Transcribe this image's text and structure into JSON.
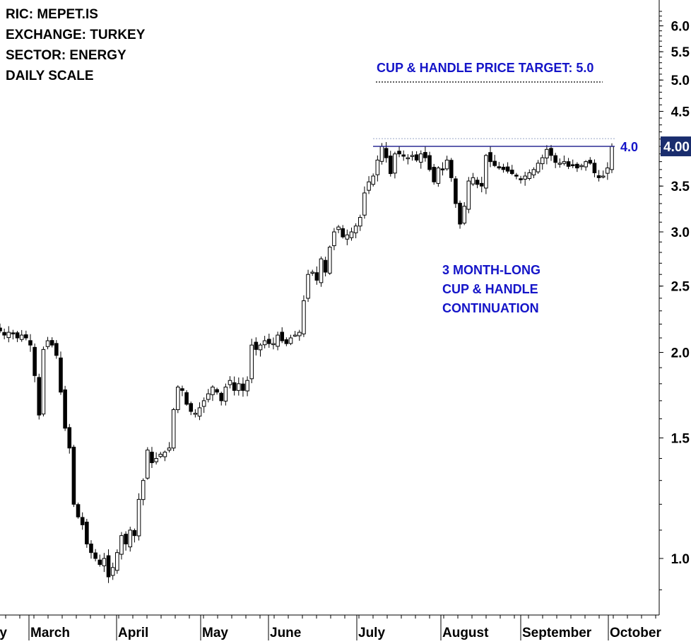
{
  "info": {
    "ric": "RIC: MEPET.IS",
    "exchange": "EXCHANGE: TURKEY",
    "sector": "SECTOR: ENERGY",
    "scale": "DAILY SCALE"
  },
  "annotations": {
    "target_text": "CUP & HANDLE PRICE TARGET: 5.0",
    "resistance_text": "4.0",
    "pattern_line1": "3 MONTH-LONG",
    "pattern_line2": "CUP & HANDLE",
    "pattern_line3": "CONTINUATION",
    "last_price_badge": "4.00"
  },
  "colors": {
    "accent": "#1414c8",
    "resistance_line": "#1a1a8c",
    "badge_bg": "#1a2d6e",
    "bull_candle": "#ffffff",
    "bear_candle": "#000000"
  },
  "chart_data": {
    "type": "candlestick",
    "title": "",
    "scale": "log",
    "ylim": [
      0.85,
      6.4
    ],
    "y_ticks": [
      "1.0",
      "1.5",
      "2.0",
      "2.5",
      "3.0",
      "3.5",
      "4.0",
      "4.5",
      "5.0",
      "5.5",
      "6.0"
    ],
    "x_ticks": [
      "ry",
      "March",
      "April",
      "May",
      "June",
      "July",
      "August",
      "September",
      "October"
    ],
    "resistance_level": 4.0,
    "price_target": 5.0,
    "last_price": 4.0,
    "approx_closes": [
      2.15,
      2.12,
      2.14,
      2.13,
      2.1,
      2.12,
      2.1,
      2.05,
      1.85,
      1.62,
      2.02,
      2.08,
      2.05,
      1.98,
      1.75,
      1.55,
      1.45,
      1.2,
      1.15,
      1.12,
      1.05,
      1.02,
      1.0,
      0.98,
      1.0,
      0.94,
      0.97,
      1.02,
      1.08,
      1.05,
      1.1,
      1.08,
      1.22,
      1.3,
      1.44,
      1.38,
      1.4,
      1.42,
      1.43,
      1.45,
      1.65,
      1.78,
      1.76,
      1.68,
      1.64,
      1.63,
      1.66,
      1.7,
      1.74,
      1.78,
      1.75,
      1.7,
      1.78,
      1.82,
      1.76,
      1.8,
      1.76,
      1.82,
      2.05,
      2.02,
      2.05,
      2.08,
      2.06,
      2.06,
      2.12,
      2.08,
      2.06,
      2.1,
      2.12,
      2.14,
      2.38,
      2.6,
      2.62,
      2.55,
      2.74,
      2.62,
      2.85,
      3.0,
      3.05,
      2.95,
      2.97,
      3.0,
      3.06,
      3.15,
      3.42,
      3.55,
      3.62,
      3.82,
      4.0,
      3.85,
      3.65,
      3.9,
      3.9,
      3.87,
      3.85,
      3.88,
      3.82,
      3.9,
      3.85,
      3.7,
      3.55,
      3.72,
      3.7,
      3.82,
      3.6,
      3.3,
      3.08,
      3.27,
      3.56,
      3.6,
      3.52,
      3.5,
      3.88,
      3.8,
      3.75,
      3.72,
      3.7,
      3.68,
      3.65,
      3.62,
      3.58,
      3.62,
      3.66,
      3.7,
      3.78,
      3.85,
      3.96,
      3.88,
      3.79,
      3.78,
      3.8,
      3.74,
      3.75,
      3.72,
      3.75,
      3.8,
      3.78,
      3.66,
      3.6,
      3.62,
      3.72,
      4.0
    ]
  }
}
